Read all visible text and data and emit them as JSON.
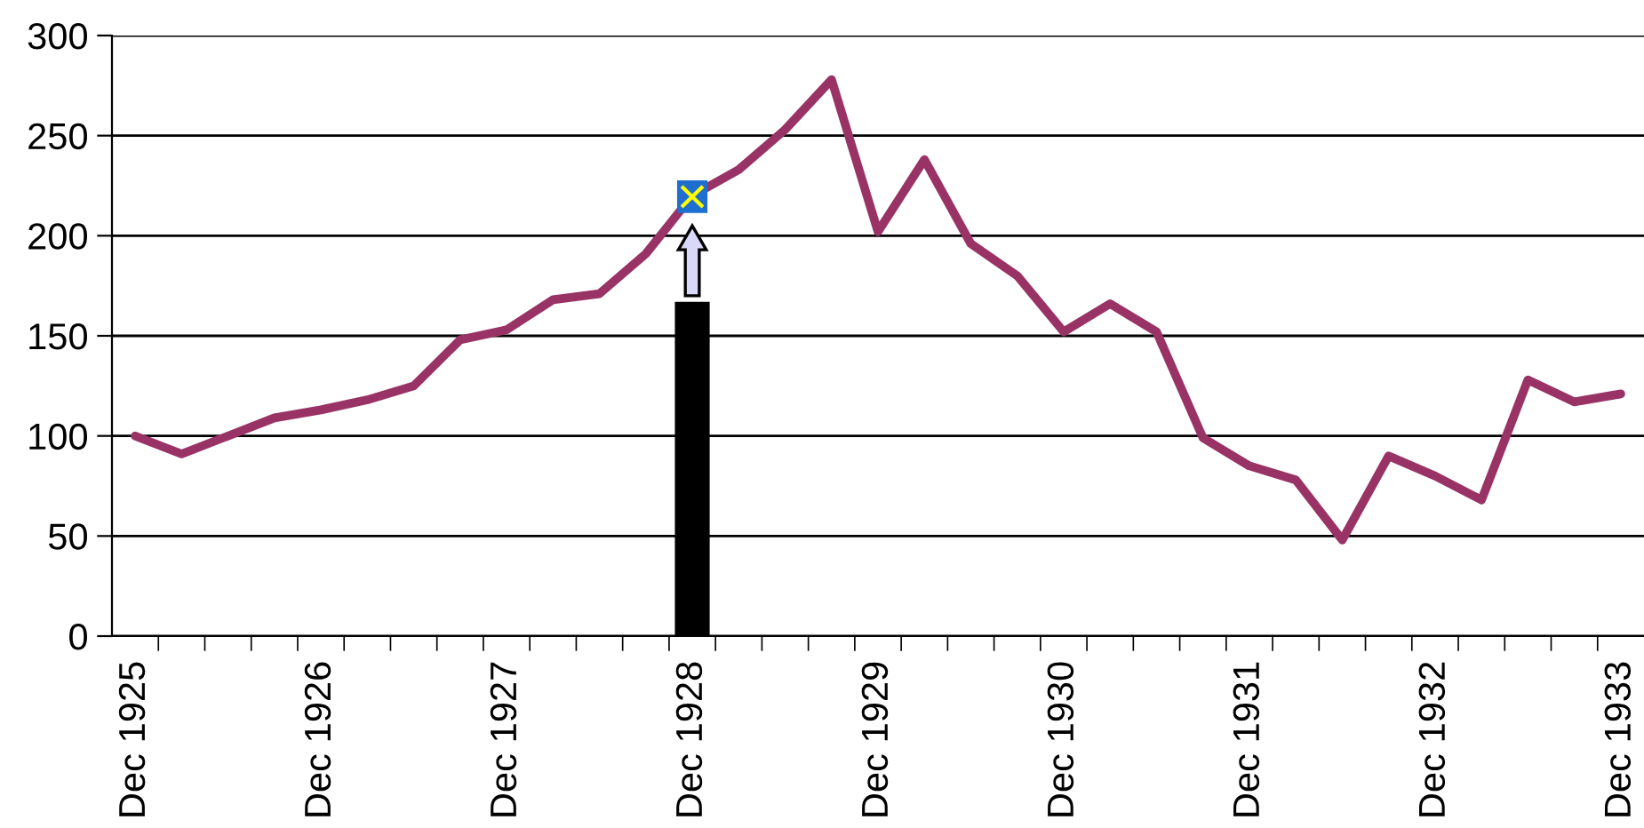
{
  "chart_data": {
    "type": "line",
    "categories": [
      "Dec 1925",
      null,
      null,
      null,
      "Dec 1926",
      null,
      null,
      null,
      "Dec 1927",
      null,
      null,
      null,
      "Dec 1928",
      null,
      null,
      null,
      "Dec 1929",
      null,
      null,
      null,
      "Dec 1930",
      null,
      null,
      null,
      "Dec 1931",
      null,
      null,
      null,
      "Dec 1932",
      null,
      null,
      null,
      "Dec 1933"
    ],
    "series": [
      {
        "type": "bar",
        "color": "#000000",
        "values": [
          null,
          null,
          null,
          null,
          null,
          null,
          null,
          null,
          null,
          null,
          null,
          null,
          167,
          null,
          null,
          null,
          null,
          null,
          null,
          null,
          null,
          null,
          null,
          null,
          null,
          null,
          null,
          null,
          null,
          null,
          null,
          null,
          null
        ]
      },
      {
        "color": "#993366",
        "values": [
          100,
          91,
          100,
          109,
          113,
          118,
          125,
          148,
          153,
          168,
          171,
          191,
          220,
          233,
          253,
          278,
          202,
          238,
          196,
          180,
          152,
          166,
          152,
          99,
          85,
          78,
          48,
          90,
          80,
          68,
          128,
          117,
          121
        ]
      }
    ],
    "ylim": [
      0,
      300
    ],
    "yticks": [
      0,
      50,
      100,
      150,
      200,
      250,
      300
    ],
    "grid": "y"
  }
}
